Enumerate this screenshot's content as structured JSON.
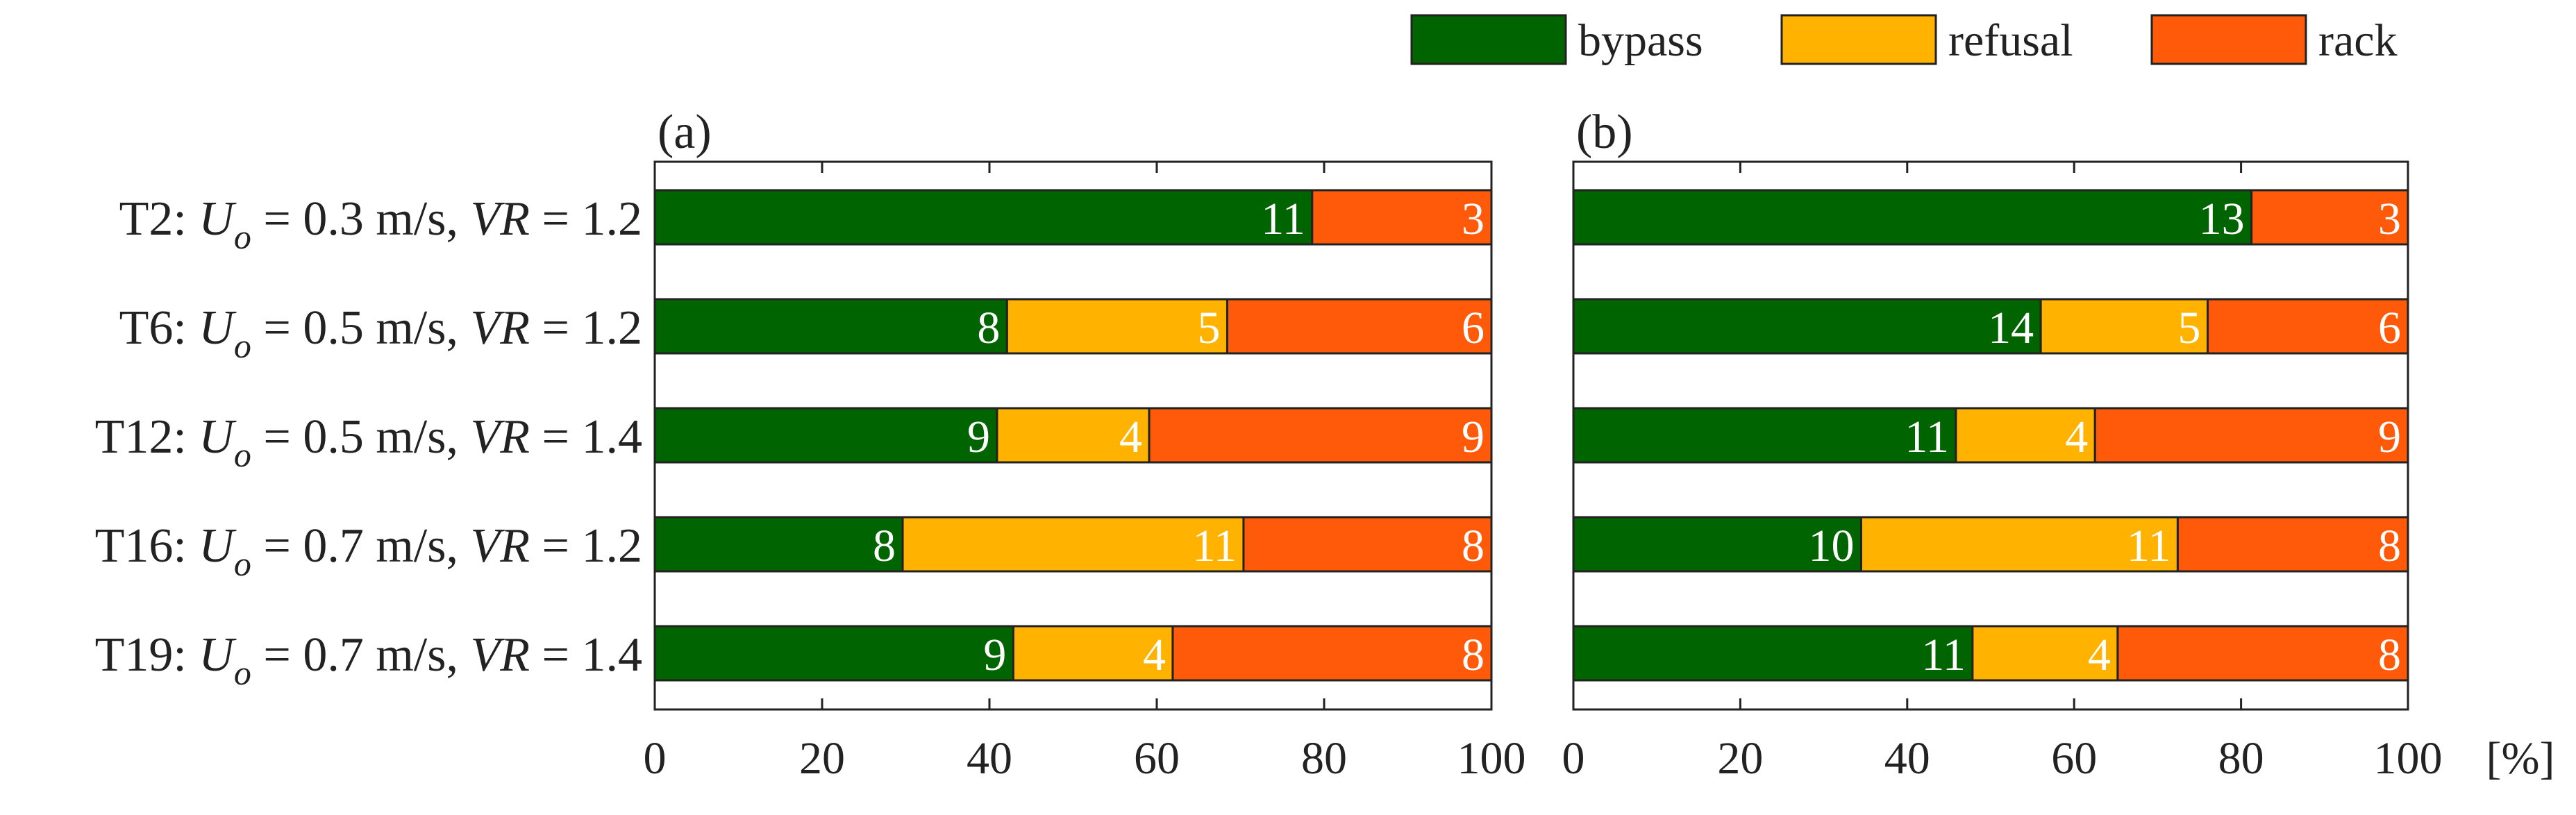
{
  "chart_data": {
    "type": "bar",
    "orientation": "horizontal",
    "stacked": true,
    "normalized_percent": true,
    "legend": {
      "placement": "top-right",
      "items": [
        {
          "name": "bypass",
          "color": "#006400"
        },
        {
          "name": "refusal",
          "color": "#FFB300"
        },
        {
          "name": "rack",
          "color": "#FF5A0A"
        }
      ]
    },
    "categories": [
      {
        "id": "T2",
        "uo": "0.3",
        "vr": "1.2"
      },
      {
        "id": "T6",
        "uo": "0.5",
        "vr": "1.2"
      },
      {
        "id": "T12",
        "uo": "0.5",
        "vr": "1.4"
      },
      {
        "id": "T16",
        "uo": "0.7",
        "vr": "1.2"
      },
      {
        "id": "T19",
        "uo": "0.7",
        "vr": "1.4"
      }
    ],
    "label_parts": {
      "u": "U",
      "sub": "o",
      "eq": " = ",
      "unit": " m/s, ",
      "vr": "VR"
    },
    "xlim": [
      0,
      100
    ],
    "xticks": [
      0,
      20,
      40,
      60,
      80,
      100
    ],
    "x_unit_label": "[%]",
    "panels": [
      {
        "label": "(a)",
        "series": [
          {
            "name": "bypass",
            "counts": [
              11,
              8,
              9,
              8,
              9
            ]
          },
          {
            "name": "refusal",
            "counts": [
              0,
              5,
              4,
              11,
              4
            ]
          },
          {
            "name": "rack",
            "counts": [
              3,
              6,
              9,
              8,
              8
            ]
          }
        ]
      },
      {
        "label": "(b)",
        "series": [
          {
            "name": "bypass",
            "counts": [
              13,
              14,
              11,
              10,
              11
            ]
          },
          {
            "name": "refusal",
            "counts": [
              0,
              5,
              4,
              11,
              4
            ]
          },
          {
            "name": "rack",
            "counts": [
              3,
              6,
              9,
              8,
              8
            ]
          }
        ]
      }
    ]
  }
}
